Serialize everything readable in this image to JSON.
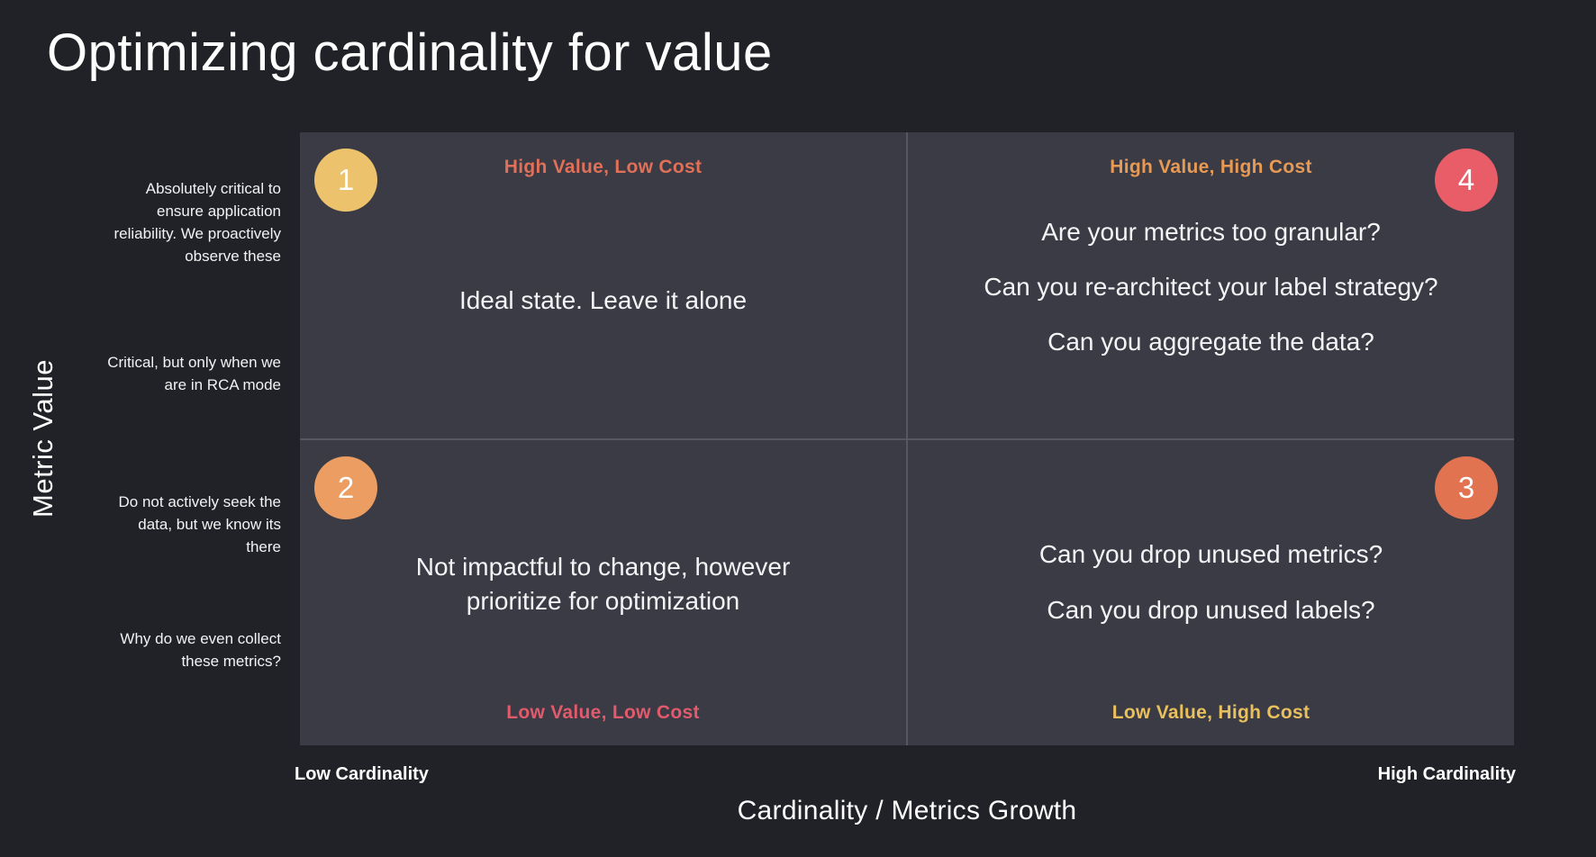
{
  "title": "Optimizing cardinality for value",
  "y_axis": {
    "title": "Metric Value",
    "labels": [
      "Absolutely critical to ensure application reliability. We proactively observe these",
      "Critical, but only when we are in RCA mode",
      "Do not actively seek the data, but we know its there",
      "Why do we even collect these metrics?"
    ]
  },
  "x_axis": {
    "title": "Cardinality / Metrics Growth",
    "left_label": "Low Cardinality",
    "right_label": "High Cardinality"
  },
  "quadrants": {
    "q1": {
      "badge": "1",
      "badge_color": "#ecc26d",
      "label": "High Value, Low Cost",
      "label_color": "#e07058",
      "lines": [
        "Ideal state. Leave it alone"
      ]
    },
    "q4": {
      "badge": "4",
      "badge_color": "#e85d67",
      "label": "High Value, High Cost",
      "label_color": "#e89a55",
      "lines": [
        "Are your metrics too granular?",
        "Can you re-architect your label strategy?",
        "Can you aggregate the data?"
      ]
    },
    "q2": {
      "badge": "2",
      "badge_color": "#eb9d62",
      "label": "Low Value, Low Cost",
      "label_color": "#e25a6c",
      "lines": [
        "Not impactful to change, however prioritize for optimization"
      ]
    },
    "q3": {
      "badge": "3",
      "badge_color": "#e27350",
      "label": "Low Value, High Cost",
      "label_color": "#e9c05e",
      "lines": [
        "Can you drop unused metrics?",
        "Can you drop unused labels?"
      ]
    }
  },
  "colors": {
    "page_background": "#212227",
    "quadrant_background": "#3a3b44",
    "divider": "#555661",
    "body_text": "#f4f4f6"
  }
}
